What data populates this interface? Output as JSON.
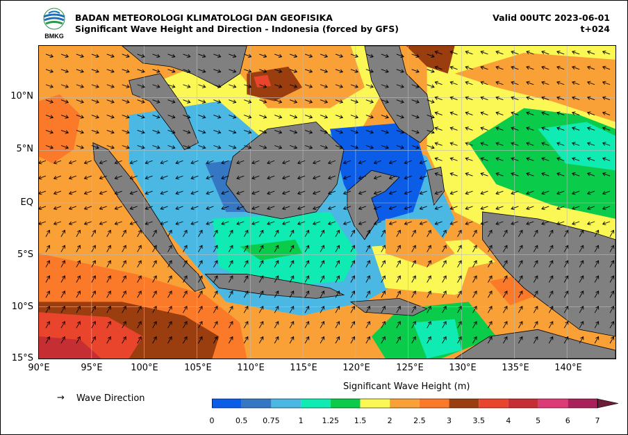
{
  "header": {
    "agency": "BADAN METEOROLOGI KLIMATOLOGI DAN GEOFISIKA",
    "product": "Significant Wave Height and Direction - Indonesia (forced by GFS)",
    "valid": "Valid 00UTC 2023-06-01",
    "lead": "t+024",
    "logo_text": "BMKG"
  },
  "axes": {
    "y_ticks": [
      "10°N",
      "5°N",
      "EQ",
      "5°S",
      "10°S",
      "15°S"
    ],
    "x_ticks": [
      "90°E",
      "95°E",
      "100°E",
      "105°E",
      "110°E",
      "115°E",
      "120°E",
      "125°E",
      "130°E",
      "135°E",
      "140°E"
    ]
  },
  "legend": {
    "arrow_glyph": "→",
    "wave_direction_label": "Wave Direction"
  },
  "colorbar": {
    "title": "Significant Wave Height (m)",
    "levels": [
      "0",
      "0.5",
      "0.75",
      "1",
      "1.25",
      "1.5",
      "2",
      "2.5",
      "3",
      "3.5",
      "4",
      "5",
      "6",
      "7"
    ],
    "colors": [
      "#0b5ce6",
      "#3677c4",
      "#4bb7e3",
      "#10eab3",
      "#0bcb4a",
      "#fbf855",
      "#f9a137",
      "#fb7a2a",
      "#9a3e10",
      "#e8452c",
      "#c52f34",
      "#dd3b78",
      "#a9215a",
      "#6b1c36"
    ],
    "land_color": "#808080"
  }
}
